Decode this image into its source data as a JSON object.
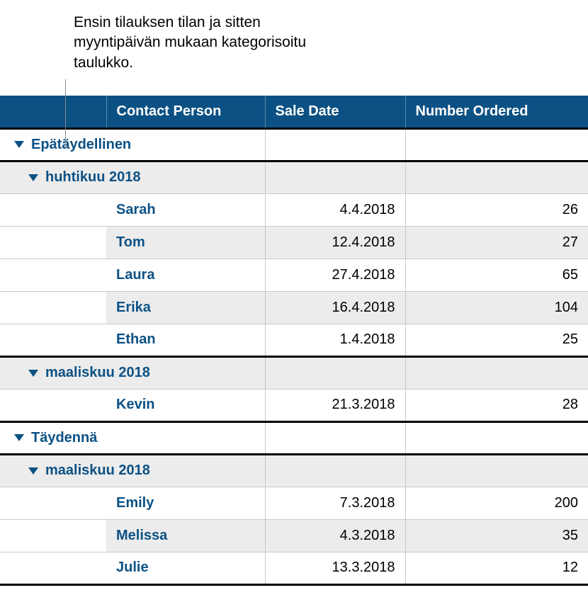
{
  "caption": "Ensin tilauksen tilan ja sitten myyntipäivän mukaan kategorisoitu taulukko.",
  "colors": {
    "header_bg": "#0c5184",
    "header_text": "#ffffff",
    "accent_text": "#0c5184",
    "alt_row_bg": "#ececec",
    "row_bg": "#ffffff",
    "border_light": "#c9c9c9",
    "border_heavy": "#000000"
  },
  "columns": [
    "",
    "Contact Person",
    "Sale Date",
    "Number Ordered"
  ],
  "groups": [
    {
      "label": "Epätäydellinen",
      "subgroups": [
        {
          "label": "huhtikuu 2018",
          "rows": [
            {
              "name": "Sarah",
              "date": "4.4.2018",
              "num": "26",
              "alt": false
            },
            {
              "name": "Tom",
              "date": "12.4.2018",
              "num": "27",
              "alt": true
            },
            {
              "name": "Laura",
              "date": "27.4.2018",
              "num": "65",
              "alt": false
            },
            {
              "name": "Erika",
              "date": "16.4.2018",
              "num": "104",
              "alt": true
            },
            {
              "name": "Ethan",
              "date": "1.4.2018",
              "num": "25",
              "alt": false
            }
          ]
        },
        {
          "label": "maaliskuu 2018",
          "rows": [
            {
              "name": "Kevin",
              "date": "21.3.2018",
              "num": "28",
              "alt": false
            }
          ]
        }
      ]
    },
    {
      "label": "Täydennä",
      "subgroups": [
        {
          "label": "maaliskuu 2018",
          "rows": [
            {
              "name": "Emily",
              "date": "7.3.2018",
              "num": "200",
              "alt": false
            },
            {
              "name": "Melissa",
              "date": "4.3.2018",
              "num": "35",
              "alt": true
            },
            {
              "name": "Julie",
              "date": "13.3.2018",
              "num": "12",
              "alt": false
            }
          ]
        }
      ]
    }
  ]
}
